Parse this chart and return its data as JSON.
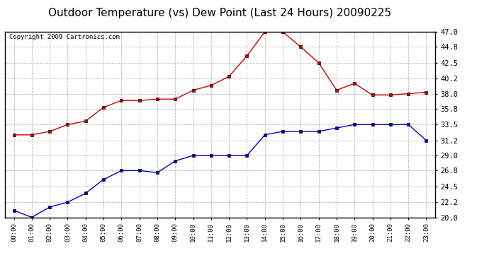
{
  "title": "Outdoor Temperature (vs) Dew Point (Last 24 Hours) 20090225",
  "copyright": "Copyright 2009 Cartronics.com",
  "x_labels": [
    "00:00",
    "01:00",
    "02:00",
    "03:00",
    "04:00",
    "05:00",
    "06:00",
    "07:00",
    "08:00",
    "09:00",
    "10:00",
    "11:00",
    "12:00",
    "13:00",
    "14:00",
    "15:00",
    "16:00",
    "17:00",
    "18:00",
    "19:00",
    "20:00",
    "21:00",
    "22:00",
    "23:00"
  ],
  "temp_data": [
    32.0,
    32.0,
    32.5,
    33.5,
    34.0,
    36.0,
    37.0,
    37.0,
    37.2,
    37.2,
    38.5,
    39.2,
    40.5,
    43.5,
    47.0,
    47.0,
    44.8,
    42.5,
    38.5,
    39.5,
    37.8,
    37.8,
    38.0,
    38.2
  ],
  "dew_data": [
    21.0,
    20.0,
    21.5,
    22.2,
    23.5,
    25.5,
    26.8,
    26.8,
    26.5,
    28.2,
    29.0,
    29.0,
    29.0,
    29.0,
    32.0,
    32.5,
    32.5,
    32.5,
    33.0,
    33.5,
    33.5,
    33.5,
    33.5,
    31.2
  ],
  "temp_color": "#cc0000",
  "dew_color": "#0000cc",
  "marker_color": "#000000",
  "ylim_min": 20.0,
  "ylim_max": 47.0,
  "yticks": [
    20.0,
    22.2,
    24.5,
    26.8,
    29.0,
    31.2,
    33.5,
    35.8,
    38.0,
    40.2,
    42.5,
    44.8,
    47.0
  ],
  "bg_color": "#ffffff",
  "grid_color": "#bbbbbb",
  "title_fontsize": 11,
  "copyright_fontsize": 6.5
}
